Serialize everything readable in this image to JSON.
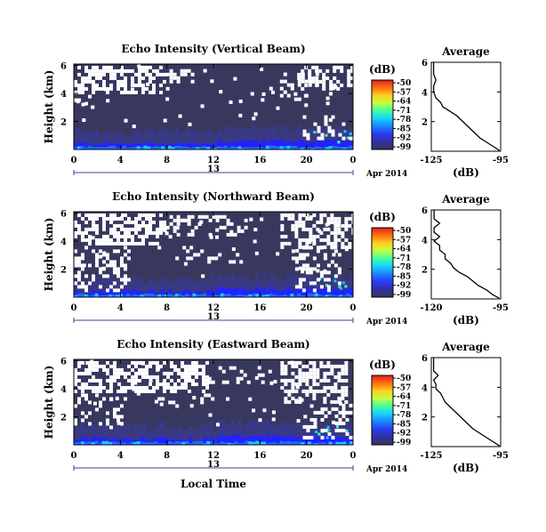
{
  "chart_data": [
    {
      "type": "heatmap",
      "title": "Echo Intensity (Vertical Beam)",
      "ylabel": "Height (km)",
      "xlabel": "",
      "x_ticks": [
        "0",
        "4",
        "8",
        "12",
        "16",
        "20",
        "0"
      ],
      "y_ticks": [
        "6",
        "4",
        "2"
      ],
      "date_day": "13",
      "date_label": "Apr 2014",
      "colorbar": {
        "label": "(dB)",
        "ticks": [
          "-50",
          "-57",
          "-64",
          "-71",
          "-78",
          "-85",
          "-92",
          "-99"
        ]
      },
      "average_profile": {
        "title": "Average",
        "xlabel": "(dB)",
        "xticks": [
          "-125",
          "-95"
        ],
        "yticks": [
          "6",
          "4",
          "2"
        ],
        "xlim": [
          -125,
          -95
        ],
        "ylim": [
          0,
          6
        ],
        "points": [
          [
            -95.5,
            0.05
          ],
          [
            -98,
            0.3
          ],
          [
            -101,
            0.6
          ],
          [
            -104,
            0.9
          ],
          [
            -106,
            1.2
          ],
          [
            -108,
            1.5
          ],
          [
            -110,
            1.8
          ],
          [
            -112,
            2.1
          ],
          [
            -114,
            2.4
          ],
          [
            -116,
            2.6
          ],
          [
            -118,
            2.8
          ],
          [
            -120,
            3.0
          ],
          [
            -121,
            3.3
          ],
          [
            -123,
            3.6
          ],
          [
            -124,
            4.0
          ],
          [
            -124,
            4.4
          ],
          [
            -123,
            4.8
          ],
          [
            -124,
            5.2
          ],
          [
            -124,
            5.6
          ],
          [
            -124,
            6.0
          ]
        ]
      }
    },
    {
      "type": "heatmap",
      "title": "Echo Intensity (Northward Beam)",
      "ylabel": "Height (km)",
      "xlabel": "",
      "x_ticks": [
        "0",
        "4",
        "8",
        "12",
        "16",
        "20",
        "0"
      ],
      "y_ticks": [
        "6",
        "4",
        "2"
      ],
      "date_day": "13",
      "date_label": "Apr 2014",
      "colorbar": {
        "label": "(dB)",
        "ticks": [
          "-50",
          "-57",
          "-64",
          "-71",
          "-78",
          "-85",
          "-92",
          "-99"
        ]
      },
      "average_profile": {
        "title": "Average",
        "xlabel": "(dB)",
        "xticks": [
          "-120",
          "-95"
        ],
        "yticks": [
          "6",
          "4",
          "2"
        ],
        "xlim": [
          -120,
          -95
        ],
        "ylim": [
          0,
          6
        ],
        "points": [
          [
            -95.5,
            0.05
          ],
          [
            -98,
            0.3
          ],
          [
            -100,
            0.6
          ],
          [
            -103,
            0.9
          ],
          [
            -105,
            1.2
          ],
          [
            -107,
            1.5
          ],
          [
            -110,
            1.8
          ],
          [
            -112,
            2.1
          ],
          [
            -113,
            2.4
          ],
          [
            -115,
            2.7
          ],
          [
            -115,
            3.0
          ],
          [
            -117,
            3.3
          ],
          [
            -117,
            3.6
          ],
          [
            -119,
            3.9
          ],
          [
            -117,
            4.2
          ],
          [
            -119,
            4.5
          ],
          [
            -119,
            4.8
          ],
          [
            -117,
            5.1
          ],
          [
            -119,
            5.4
          ],
          [
            -119,
            5.8
          ],
          [
            -119,
            6.0
          ]
        ]
      }
    },
    {
      "type": "heatmap",
      "title": "Echo Intensity (Eastward Beam)",
      "ylabel": "Height (km)",
      "xlabel": "Local Time",
      "x_ticks": [
        "0",
        "4",
        "8",
        "12",
        "16",
        "20",
        "0"
      ],
      "y_ticks": [
        "6",
        "4",
        "2"
      ],
      "date_day": "13",
      "date_label": "Apr 2014",
      "colorbar": {
        "label": "(dB)",
        "ticks": [
          "-50",
          "-57",
          "-64",
          "-71",
          "-78",
          "-85",
          "-92",
          "-99"
        ]
      },
      "average_profile": {
        "title": "Average",
        "xlabel": "(dB)",
        "xticks": [
          "-125",
          "-95"
        ],
        "yticks": [
          "6",
          "4",
          "2"
        ],
        "xlim": [
          -125,
          -95
        ],
        "ylim": [
          0,
          6
        ],
        "points": [
          [
            -95.5,
            0.05
          ],
          [
            -98,
            0.3
          ],
          [
            -101,
            0.6
          ],
          [
            -104,
            0.9
          ],
          [
            -107,
            1.2
          ],
          [
            -109,
            1.5
          ],
          [
            -111,
            1.8
          ],
          [
            -113,
            2.1
          ],
          [
            -115,
            2.4
          ],
          [
            -117,
            2.7
          ],
          [
            -119,
            3.0
          ],
          [
            -120,
            3.3
          ],
          [
            -121,
            3.6
          ],
          [
            -123,
            3.9
          ],
          [
            -123,
            4.2
          ],
          [
            -124,
            4.5
          ],
          [
            -122,
            4.8
          ],
          [
            -124,
            5.1
          ],
          [
            -124,
            5.5
          ],
          [
            -124,
            6.0
          ]
        ]
      }
    }
  ],
  "colors": {
    "background_field": "#38385f",
    "bright_stops": [
      "#3a3aa0",
      "#2222ff",
      "#1a70ff",
      "#19c8ff",
      "#3cffb0",
      "#c8ff40",
      "#ffd21e",
      "#ff6a10",
      "#e82020"
    ],
    "colorbar_stops": [
      "#353560",
      "#3030a0",
      "#2a3bf0",
      "#1c82ff",
      "#18d0ff",
      "#40ffa0",
      "#c0ff40",
      "#ffd020",
      "#ff7010",
      "#e02020"
    ]
  }
}
